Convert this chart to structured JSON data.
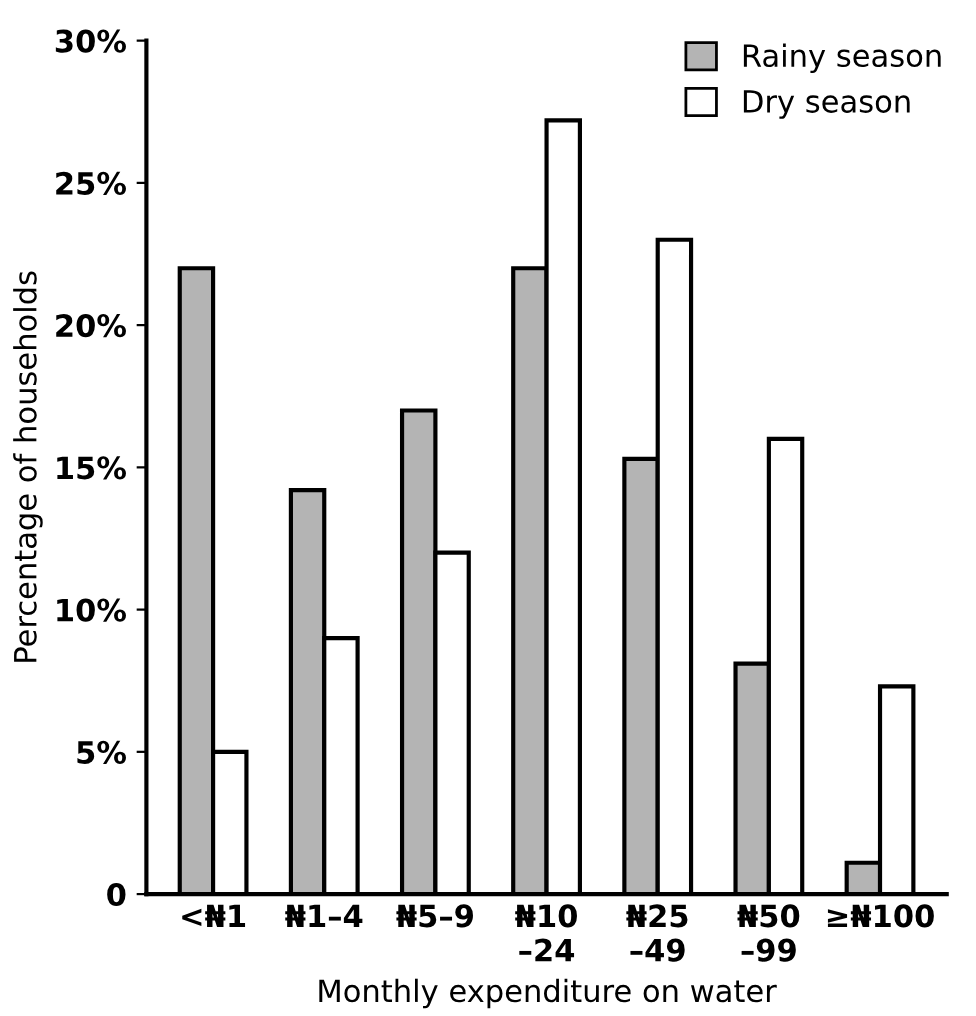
{
  "chart_data": {
    "type": "bar",
    "xlabel": "Monthly expenditure on water",
    "ylabel": "Percentage of households",
    "categories": [
      "<₦1",
      "₦1–4",
      "₦5–9",
      "₦10\n–24",
      "₦25\n–49",
      "₦50\n–99",
      "≥₦100"
    ],
    "series": [
      {
        "name": "Rainy season",
        "color": "#b4b4b4",
        "values": [
          22,
          14.2,
          17,
          22,
          15.3,
          8.1,
          1.1
        ]
      },
      {
        "name": "Dry season",
        "color": "#ffffff",
        "values": [
          5,
          9,
          12,
          27.2,
          23,
          16,
          7.3
        ]
      }
    ],
    "ylim": [
      0,
      30
    ],
    "yticks": [
      0,
      {
        "value": 5,
        "label": "5%"
      },
      {
        "value": 10,
        "label": "10%"
      },
      {
        "value": 15,
        "label": "15%"
      },
      {
        "value": 20,
        "label": "20%"
      },
      {
        "value": 25,
        "label": "25%"
      },
      {
        "value": 30,
        "label": "30%"
      }
    ],
    "legend": "top right",
    "grid": false
  }
}
